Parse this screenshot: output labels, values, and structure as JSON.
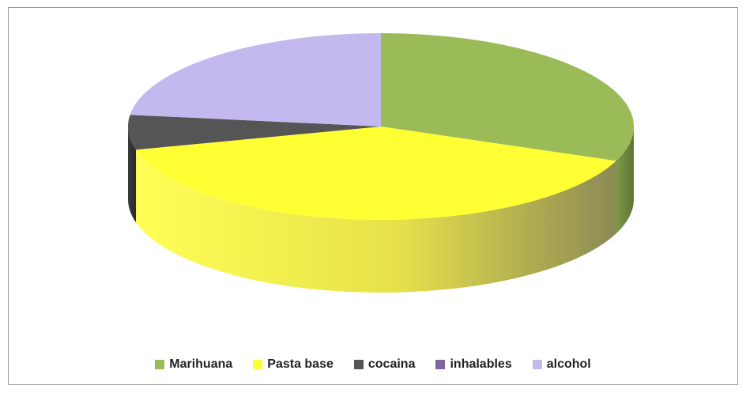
{
  "chart_data": {
    "type": "pie",
    "style": "3d",
    "title": "",
    "legend_position": "bottom",
    "slices": [
      {
        "label": "Marihuana",
        "value": 31,
        "color": "#9bbb59"
      },
      {
        "label": "Pasta base",
        "value": 40,
        "color": "#ffff33"
      },
      {
        "label": "cocaina",
        "value": 6,
        "color": "#555555"
      },
      {
        "label": "inhalables",
        "value": 0,
        "color": "#8064a2"
      },
      {
        "label": "alcohol",
        "value": 23,
        "color": "#c4b9ef"
      }
    ]
  }
}
